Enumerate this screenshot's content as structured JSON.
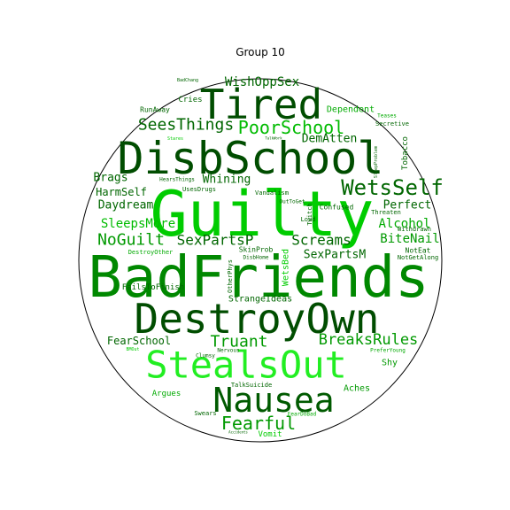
{
  "title": "Group 10",
  "palette": {
    "dark": "#004d00",
    "medium": "#008800",
    "bright": "#00cc00",
    "lime": "#22ee22",
    "circle": "#000000"
  },
  "words": [
    {
      "text": "Guilty",
      "color": "#00cc00"
    },
    {
      "text": "BadFriends",
      "color": "#008800"
    },
    {
      "text": "DisbSchool",
      "color": "#004d00"
    },
    {
      "text": "DestroyOwn",
      "color": "#004d00"
    },
    {
      "text": "StealsOut",
      "color": "#22ee22"
    },
    {
      "text": "Tired",
      "color": "#004d00"
    },
    {
      "text": "Nausea",
      "color": "#005a00"
    },
    {
      "text": "WetsSelf",
      "color": "#006600"
    },
    {
      "text": "PoorSchool",
      "color": "#00bb00"
    },
    {
      "text": "SeesThings",
      "color": "#006600"
    },
    {
      "text": "WishOppSex",
      "color": "#006600"
    },
    {
      "text": "Fearful",
      "color": "#009900"
    },
    {
      "text": "NoGuilt",
      "color": "#009900"
    },
    {
      "text": "SexPartsP",
      "color": "#006600"
    },
    {
      "text": "Screams",
      "color": "#006600"
    },
    {
      "text": "BreaksRules",
      "color": "#009900"
    },
    {
      "text": "Truant",
      "color": "#009900"
    },
    {
      "text": "SleepsMore",
      "color": "#00bb00"
    },
    {
      "text": "Daydream",
      "color": "#006600"
    },
    {
      "text": "HarmSelf",
      "color": "#006600"
    },
    {
      "text": "Brags",
      "color": "#006600"
    },
    {
      "text": "Whining",
      "color": "#006600"
    },
    {
      "text": "DemAtten",
      "color": "#006600"
    },
    {
      "text": "Perfect",
      "color": "#006600"
    },
    {
      "text": "Alcohol",
      "color": "#00aa00"
    },
    {
      "text": "BiteNail",
      "color": "#009900"
    },
    {
      "text": "SexPartsM",
      "color": "#006600"
    },
    {
      "text": "FearSchool",
      "color": "#006600"
    },
    {
      "text": "StrangeIdeas",
      "color": "#006600"
    },
    {
      "text": "FailsToFinish",
      "color": "#006600"
    },
    {
      "text": "Dependent",
      "color": "#00aa00"
    },
    {
      "text": "RunAway",
      "color": "#006600"
    },
    {
      "text": "Cries",
      "color": "#006600"
    },
    {
      "text": "Aches",
      "color": "#009900"
    },
    {
      "text": "Shy",
      "color": "#009900"
    },
    {
      "text": "Vomit",
      "color": "#00cc00"
    },
    {
      "text": "Argues",
      "color": "#00aa00"
    },
    {
      "text": "Swears",
      "color": "#006600"
    },
    {
      "text": "Tobacco",
      "color": "#006600"
    },
    {
      "text": "Secretive",
      "color": "#006600"
    },
    {
      "text": "Teases",
      "color": "#00aa00"
    },
    {
      "text": "Confused",
      "color": "#006600"
    },
    {
      "text": "Vandalism",
      "color": "#006600"
    },
    {
      "text": "OutToGet",
      "color": "#006600"
    },
    {
      "text": "Twitch",
      "color": "#006600"
    },
    {
      "text": "Loud",
      "color": "#006600"
    },
    {
      "text": "WetsBed",
      "color": "#00cc00"
    },
    {
      "text": "Threaten",
      "color": "#006600"
    },
    {
      "text": "Withdrawn",
      "color": "#006600"
    },
    {
      "text": "NotEat",
      "color": "#006600"
    },
    {
      "text": "NotGetAlong",
      "color": "#006600"
    },
    {
      "text": "PreferYoung",
      "color": "#00aa00"
    },
    {
      "text": "SkinProb",
      "color": "#006600"
    },
    {
      "text": "DisbHome",
      "color": "#006600"
    },
    {
      "text": "OtherPhys",
      "color": "#006600"
    },
    {
      "text": "DestroyOther",
      "color": "#00aa00"
    },
    {
      "text": "UsesDrugs",
      "color": "#006600"
    },
    {
      "text": "HearsThings",
      "color": "#006600"
    },
    {
      "text": "Nervous",
      "color": "#006600"
    },
    {
      "text": "Clumsy",
      "color": "#006600"
    },
    {
      "text": "BMOut",
      "color": "#00cc00"
    },
    {
      "text": "TalkSuicide",
      "color": "#006600"
    },
    {
      "text": "FearDoBad",
      "color": "#00aa00"
    },
    {
      "text": "Stares",
      "color": "#00cc00"
    },
    {
      "text": "TalkWork",
      "color": "#006600"
    },
    {
      "text": "SleepProblem",
      "color": "#006600"
    },
    {
      "text": "BadChang",
      "color": "#006600"
    },
    {
      "text": "Accidents",
      "color": "#006600"
    }
  ]
}
